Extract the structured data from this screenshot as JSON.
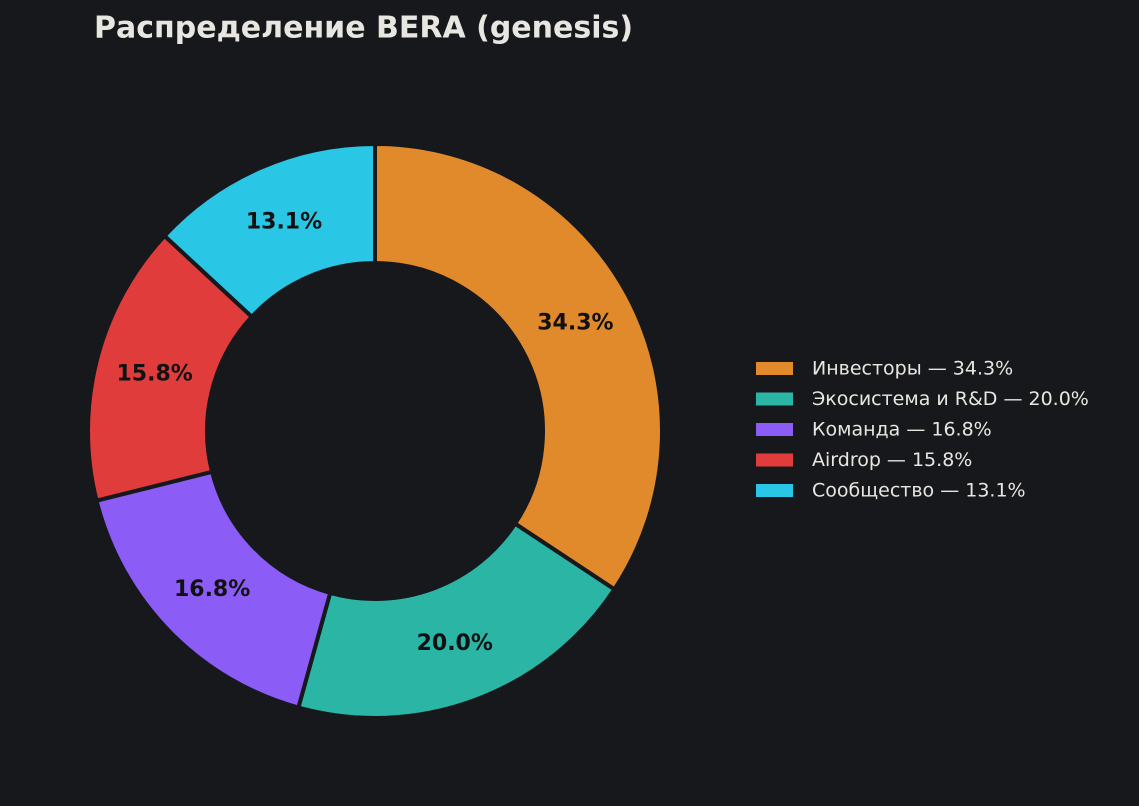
{
  "chart_data": {
    "type": "donut",
    "title": "Распределение BERA (genesis)",
    "categories": [
      "Инвесторы — 34.3%",
      "Экосистема и R&D — 20.0%",
      "Команда — 16.8%",
      "Airdrop — 15.8%",
      "Сообщество — 13.1%"
    ],
    "values": [
      34.3,
      20.0,
      16.8,
      15.8,
      13.1
    ],
    "value_labels": [
      "34.3%",
      "20.0%",
      "16.8%",
      "15.8%",
      "13.1%"
    ],
    "colors": [
      "#e08a2c",
      "#2ab5a5",
      "#8b5cf6",
      "#e03c3c",
      "#29c6e6"
    ],
    "legend": "right"
  }
}
